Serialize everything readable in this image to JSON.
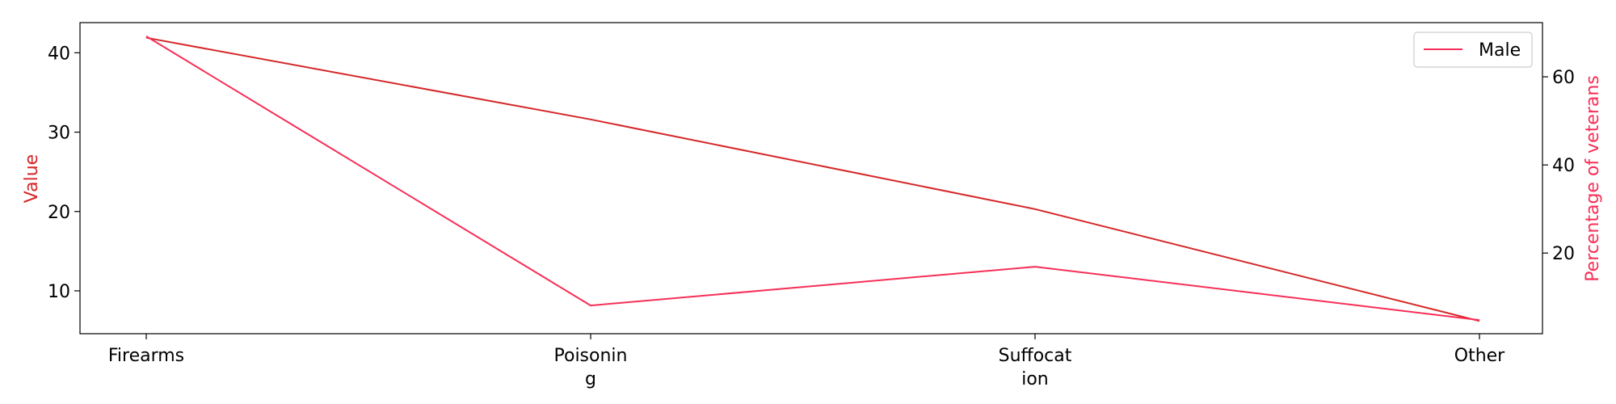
{
  "chart_data": {
    "type": "line",
    "categories": [
      "Firearms",
      "Poisonin\ng",
      "Suffocat\nion",
      "Other"
    ],
    "series": [
      {
        "axis": "left",
        "color": "#d62728",
        "values": [
          41.9,
          31.6,
          20.3,
          6.2
        ]
      },
      {
        "name": "Male",
        "axis": "right",
        "color": "#f72f57",
        "values": [
          69.2,
          8.1,
          16.9,
          4.8
        ]
      }
    ],
    "ylabel_left": "Value",
    "ylabel_right": "Percentage of veterans",
    "ylabel_left_color": "#d62728",
    "ylabel_right_color": "#f72f57",
    "ylim_left": [
      4.6,
      43.8
    ],
    "ylim_right": [
      1.7,
      72.3
    ],
    "yticks_left": [
      10,
      20,
      30,
      40
    ],
    "yticks_right": [
      20,
      40,
      60
    ],
    "legend": {
      "position": "top-right",
      "entries": [
        "Male"
      ]
    },
    "grid": false
  }
}
